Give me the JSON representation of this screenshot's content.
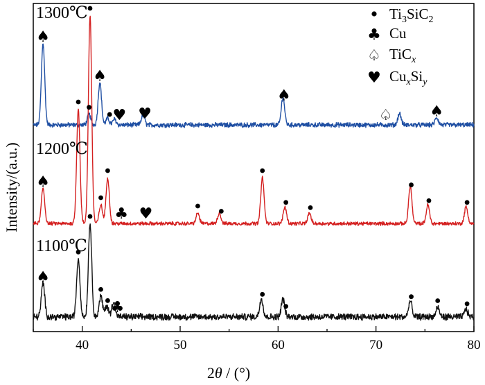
{
  "chart_data": {
    "type": "line",
    "title": "",
    "xlabel": {
      "main": "2",
      "italic": "θ",
      "rest": " / (°)"
    },
    "ylabel": "Intensity/(a.u.)",
    "xlim": [
      35,
      80
    ],
    "xticks": [
      40,
      50,
      60,
      70,
      80
    ],
    "grid": false,
    "legend": {
      "placement": "top-right",
      "entries": [
        {
          "symbol": "dot",
          "text": {
            "a": "Ti",
            "sub1": "3",
            "b": "SiC",
            "sub2": "2"
          }
        },
        {
          "symbol": "club",
          "text": {
            "a": "Cu"
          }
        },
        {
          "symbol": "spade-outline",
          "text": {
            "a": "TiC",
            "sub_italic": "x"
          }
        },
        {
          "symbol": "heart",
          "text": {
            "a": "Cu",
            "sub_italic1": "x",
            "b": "Si",
            "sub_italic2": "y"
          }
        }
      ]
    },
    "series": [
      {
        "label": "1300℃",
        "color": "#1f4fa3",
        "baseline": 1.0,
        "peaks": [
          {
            "x": 36.0,
            "h": 1.0
          },
          {
            "x": 40.7,
            "h": 0.13
          },
          {
            "x": 41.8,
            "h": 0.52
          },
          {
            "x": 42.6,
            "h": 0.08
          },
          {
            "x": 43.3,
            "h": 0.07
          },
          {
            "x": 46.2,
            "h": 0.12
          },
          {
            "x": 60.5,
            "h": 0.34
          },
          {
            "x": 72.4,
            "h": 0.14
          },
          {
            "x": 76.2,
            "h": 0.09
          }
        ],
        "markers": [
          {
            "x": 36.0,
            "symbol": "spade"
          },
          {
            "x": 40.7,
            "symbol": "dot"
          },
          {
            "x": 41.8,
            "symbol": "spade"
          },
          {
            "x": 42.8,
            "symbol": "dot"
          },
          {
            "x": 43.8,
            "symbol": "heart"
          },
          {
            "x": 46.4,
            "symbol": "heart"
          },
          {
            "x": 60.6,
            "symbol": "spade"
          },
          {
            "x": 71.0,
            "symbol": "spade-outline"
          },
          {
            "x": 76.2,
            "symbol": "spade"
          }
        ]
      },
      {
        "label": "1200℃",
        "color": "#d42020",
        "baseline": 2.0,
        "peaks": [
          {
            "x": 36.0,
            "h": 0.17
          },
          {
            "x": 39.6,
            "h": 0.55
          },
          {
            "x": 40.8,
            "h": 1.0
          },
          {
            "x": 41.9,
            "h": 0.09
          },
          {
            "x": 42.6,
            "h": 0.22
          },
          {
            "x": 51.8,
            "h": 0.05
          },
          {
            "x": 54.0,
            "h": 0.05
          },
          {
            "x": 58.4,
            "h": 0.22
          },
          {
            "x": 60.7,
            "h": 0.08
          },
          {
            "x": 63.2,
            "h": 0.05
          },
          {
            "x": 73.5,
            "h": 0.18
          },
          {
            "x": 75.3,
            "h": 0.09
          },
          {
            "x": 79.2,
            "h": 0.08
          }
        ],
        "markers": [
          {
            "x": 36.0,
            "symbol": "spade"
          },
          {
            "x": 39.6,
            "symbol": "dot"
          },
          {
            "x": 40.8,
            "symbol": "dot"
          },
          {
            "x": 41.9,
            "symbol": "dot"
          },
          {
            "x": 42.6,
            "symbol": "dot"
          },
          {
            "x": 44.0,
            "symbol": "club"
          },
          {
            "x": 46.5,
            "symbol": "heart"
          },
          {
            "x": 51.8,
            "symbol": "dot"
          },
          {
            "x": 54.2,
            "symbol": "dot"
          },
          {
            "x": 58.4,
            "symbol": "dot"
          },
          {
            "x": 60.8,
            "symbol": "dot"
          },
          {
            "x": 63.3,
            "symbol": "dot"
          },
          {
            "x": 73.6,
            "symbol": "dot"
          },
          {
            "x": 75.4,
            "symbol": "dot"
          },
          {
            "x": 79.3,
            "symbol": "dot"
          }
        ]
      },
      {
        "label": "1100℃",
        "color": "#111111",
        "baseline": 3.0,
        "peaks": [
          {
            "x": 36.0,
            "h": 0.36
          },
          {
            "x": 39.6,
            "h": 0.62
          },
          {
            "x": 40.8,
            "h": 1.0
          },
          {
            "x": 41.9,
            "h": 0.22
          },
          {
            "x": 42.5,
            "h": 0.12
          },
          {
            "x": 43.2,
            "h": 0.17
          },
          {
            "x": 58.3,
            "h": 0.2
          },
          {
            "x": 60.5,
            "h": 0.19
          },
          {
            "x": 73.5,
            "h": 0.17
          },
          {
            "x": 76.3,
            "h": 0.1
          },
          {
            "x": 79.2,
            "h": 0.08
          }
        ],
        "markers": [
          {
            "x": 36.0,
            "symbol": "spade"
          },
          {
            "x": 39.6,
            "symbol": "dot"
          },
          {
            "x": 40.8,
            "symbol": "dot"
          },
          {
            "x": 41.9,
            "symbol": "dot"
          },
          {
            "x": 42.6,
            "symbol": "dot"
          },
          {
            "x": 43.6,
            "symbol": "club"
          },
          {
            "x": 58.4,
            "symbol": "dot"
          },
          {
            "x": 60.8,
            "symbol": "dot"
          },
          {
            "x": 73.6,
            "symbol": "dot"
          },
          {
            "x": 76.3,
            "symbol": "dot"
          },
          {
            "x": 79.3,
            "symbol": "dot"
          }
        ]
      }
    ]
  }
}
